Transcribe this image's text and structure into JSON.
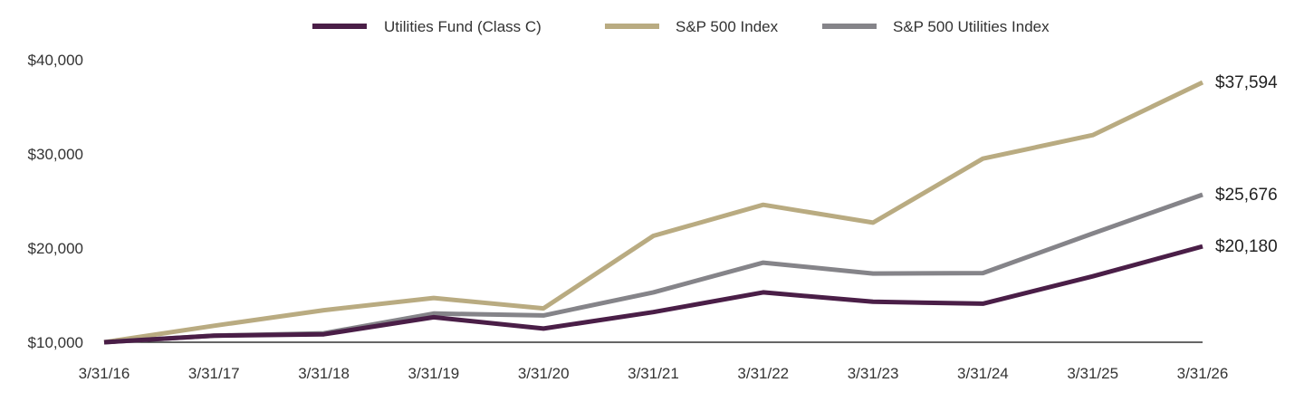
{
  "chart_data": {
    "type": "line",
    "x": [
      "3/31/16",
      "3/31/17",
      "3/31/18",
      "3/31/19",
      "3/31/20",
      "3/31/21",
      "3/31/22",
      "3/31/23",
      "3/31/24",
      "3/31/25",
      "3/31/26"
    ],
    "yticks": [
      "$10,000",
      "$20,000",
      "$30,000",
      "$40,000"
    ],
    "ytick_values": [
      10000,
      20000,
      30000,
      40000
    ],
    "ylim": [
      10000,
      40000
    ],
    "grid": false,
    "legend_position": "top-center",
    "series": [
      {
        "name": "Utilities Fund (Class C)",
        "color": "#4a1e47",
        "values": [
          10000,
          10700,
          10850,
          12650,
          11450,
          13200,
          15300,
          14300,
          14100,
          17000,
          20180
        ],
        "end_label": "$20,180"
      },
      {
        "name": "S&P 500 Index",
        "color": "#b9ab81",
        "values": [
          10000,
          11750,
          13400,
          14700,
          13600,
          21300,
          24600,
          22700,
          29500,
          32000,
          37594
        ],
        "end_label": "$37,594"
      },
      {
        "name": "S&P 500 Utilities Index",
        "color": "#858489",
        "values": [
          10000,
          10700,
          10950,
          13050,
          12850,
          15300,
          18450,
          17300,
          17350,
          21550,
          25676
        ],
        "end_label": "$25,676"
      }
    ]
  }
}
